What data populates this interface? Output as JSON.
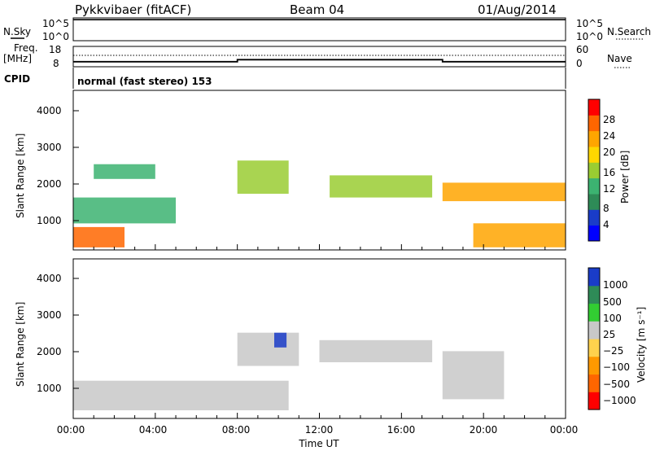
{
  "header": {
    "station": "Pykkvibaer (fitACF)",
    "beam": "Beam 04",
    "date": "01/Aug/2014"
  },
  "noise_panel": {
    "left_label": "N.Sky",
    "left_ticks": [
      "10^5",
      "10^0"
    ],
    "right_label": "N.Search",
    "right_ticks": [
      "10^5",
      "10^0"
    ]
  },
  "freq_panel": {
    "left_label_1": "Freq.",
    "left_label_2": "[MHz]",
    "left_ticks": [
      "18",
      "8"
    ],
    "right_label": "Nave",
    "right_ticks": [
      "60",
      "0"
    ],
    "cpid_label": "CPID",
    "cpid_text": "normal (fast stereo) 153"
  },
  "power_panel": {
    "ylabel": "Slant Range [km]",
    "y_ticks": [
      "4000",
      "3000",
      "2000",
      "1000"
    ],
    "colorbar_label": "Power [dB]",
    "colorbar_ticks": [
      "28",
      "24",
      "20",
      "16",
      "12",
      "8",
      "4"
    ],
    "colors": [
      "#0000ff",
      "#1a3cc8",
      "#2e8b57",
      "#3cb371",
      "#9acd32",
      "#ffd700",
      "#ffa500",
      "#ff6600",
      "#ff0000"
    ]
  },
  "velocity_panel": {
    "ylabel": "Slant Range [km]",
    "y_ticks": [
      "4000",
      "3000",
      "2000",
      "1000"
    ],
    "colorbar_label": "Velocity [m s⁻¹]",
    "colorbar_ticks": [
      "1000",
      "500",
      "100",
      "25",
      "−25",
      "−100",
      "−500",
      "−1000"
    ],
    "colors": [
      "#1a3cc8",
      "#2e8b57",
      "#32cd32",
      "#c8c8c8",
      "#ffd24d",
      "#ff9900",
      "#ff6600",
      "#ff0000"
    ]
  },
  "x_axis": {
    "label": "Time UT",
    "ticks": [
      "00:00",
      "04:00",
      "08:00",
      "12:00",
      "16:00",
      "20:00",
      "00:00"
    ]
  },
  "chart_data": [
    {
      "type": "line",
      "title": "N.Sky / N.Search",
      "x": [
        0,
        4,
        8,
        12,
        16,
        20,
        24
      ],
      "series": [
        {
          "values": [
            4.6,
            4.6,
            4.6,
            4.6,
            4.6,
            4.6,
            4.6
          ]
        }
      ],
      "ylim": [
        0,
        5
      ],
      "log_scale": true
    },
    {
      "type": "line",
      "title": "Freq. / Nave",
      "x": [
        0,
        8,
        8,
        18,
        18,
        24
      ],
      "series": [
        {
          "values": [
            10.5,
            10.5,
            11.5,
            11.5,
            10.5,
            10.5
          ]
        }
      ],
      "ylim": [
        8,
        18
      ]
    },
    {
      "type": "heatmap",
      "ylabel": "Slant Range [km]",
      "xlabel": "Time UT",
      "ylim": [
        180,
        4500
      ],
      "colorbar": {
        "label": "Power [dB]",
        "range": [
          0,
          30
        ]
      },
      "bands": [
        {
          "t0": 0,
          "t1": 2.5,
          "r0": 250,
          "r1": 800,
          "value": 24
        },
        {
          "t0": 0,
          "t1": 5,
          "r0": 900,
          "r1": 1600,
          "value": 12
        },
        {
          "t0": 1,
          "t1": 4,
          "r0": 2100,
          "r1": 2500,
          "value": 10
        },
        {
          "t0": 8,
          "t1": 10.5,
          "r0": 1700,
          "r1": 2600,
          "value": 14
        },
        {
          "t0": 12.5,
          "t1": 17.5,
          "r0": 1600,
          "r1": 2200,
          "value": 14
        },
        {
          "t0": 18,
          "t1": 24,
          "r0": 1500,
          "r1": 2000,
          "value": 22
        },
        {
          "t0": 19.5,
          "t1": 24,
          "r0": 250,
          "r1": 900,
          "value": 20
        }
      ]
    },
    {
      "type": "heatmap",
      "ylabel": "Slant Range [km]",
      "xlabel": "Time UT",
      "ylim": [
        180,
        4500
      ],
      "colorbar": {
        "label": "Velocity [m s⁻¹]",
        "range": [
          -1000,
          1000
        ]
      },
      "bands": [
        {
          "t0": 0,
          "t1": 10.5,
          "r0": 400,
          "r1": 1200,
          "value": 0
        },
        {
          "t0": 8,
          "t1": 11,
          "r0": 1600,
          "r1": 2500,
          "value": 0
        },
        {
          "t0": 12,
          "t1": 17.5,
          "r0": 1700,
          "r1": 2300,
          "value": 0
        },
        {
          "t0": 18,
          "t1": 21,
          "r0": 700,
          "r1": 2000,
          "value": 200
        },
        {
          "t0": 9.8,
          "t1": 10.4,
          "r0": 2100,
          "r1": 2500,
          "value": 800
        }
      ]
    }
  ]
}
